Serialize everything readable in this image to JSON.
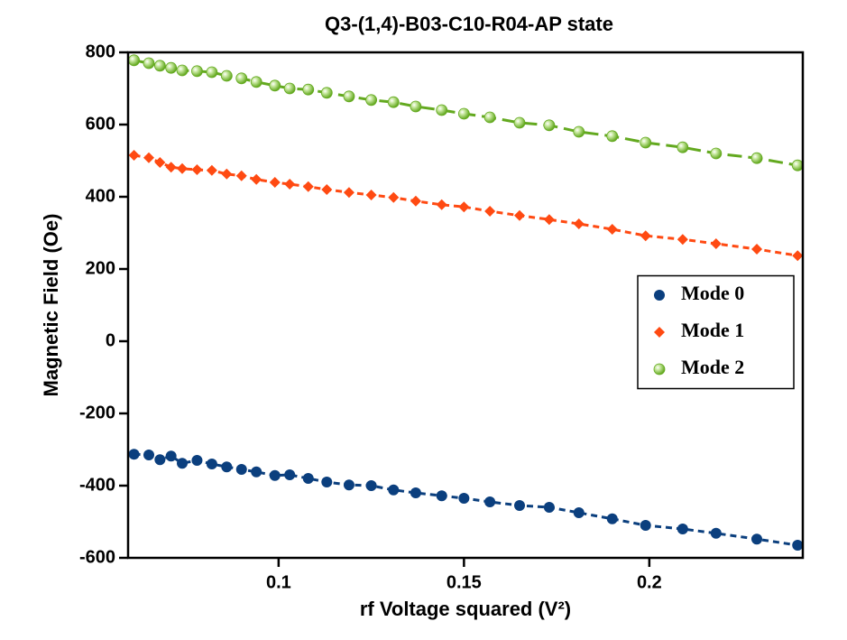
{
  "chart_data": {
    "type": "scatter",
    "title": "Q3-(1,4)-B03-C10-R04-AP state",
    "x_label": "rf Voltage squared (V²)",
    "y_label": "Magnetic Field (Oe)",
    "x": [
      0.061,
      0.065,
      0.068,
      0.071,
      0.074,
      0.078,
      0.082,
      0.086,
      0.09,
      0.094,
      0.099,
      0.103,
      0.108,
      0.113,
      0.119,
      0.125,
      0.131,
      0.137,
      0.144,
      0.15,
      0.157,
      0.165,
      0.173,
      0.181,
      0.19,
      0.199,
      0.209,
      0.218,
      0.229,
      0.24
    ],
    "series": [
      {
        "name": "Mode 0",
        "color": "#0b3f7e",
        "marker": "circle",
        "line": "short-dash",
        "values": [
          -313,
          -315,
          -328,
          -318,
          -338,
          -330,
          -340,
          -348,
          -355,
          -362,
          -372,
          -370,
          -380,
          -390,
          -398,
          -400,
          -412,
          -420,
          -428,
          -435,
          -445,
          -455,
          -460,
          -475,
          -492,
          -510,
          -520,
          -532,
          -548,
          -565
        ]
      },
      {
        "name": "Mode 1",
        "color": "#ff4a12",
        "marker": "diamond",
        "line": "short-dash",
        "values": [
          515,
          508,
          495,
          482,
          478,
          475,
          473,
          463,
          458,
          448,
          440,
          435,
          428,
          420,
          412,
          405,
          398,
          388,
          378,
          372,
          360,
          348,
          337,
          325,
          310,
          292,
          282,
          270,
          255,
          237
        ]
      },
      {
        "name": "Mode 2",
        "color": "#63a91f",
        "marker": "sphere",
        "line": "long-dash",
        "values": [
          778,
          770,
          763,
          757,
          750,
          748,
          745,
          735,
          728,
          718,
          708,
          700,
          697,
          688,
          678,
          668,
          662,
          650,
          640,
          630,
          620,
          605,
          598,
          580,
          568,
          550,
          537,
          520,
          507,
          487
        ]
      }
    ],
    "xlim": [
      0.0594,
      0.2414
    ],
    "xticks": [
      0.1,
      0.15,
      0.2
    ],
    "ylim": [
      -600,
      800
    ],
    "yticks": [
      -600,
      -400,
      -200,
      0,
      200,
      400,
      600,
      800
    ],
    "legend": "center right"
  }
}
